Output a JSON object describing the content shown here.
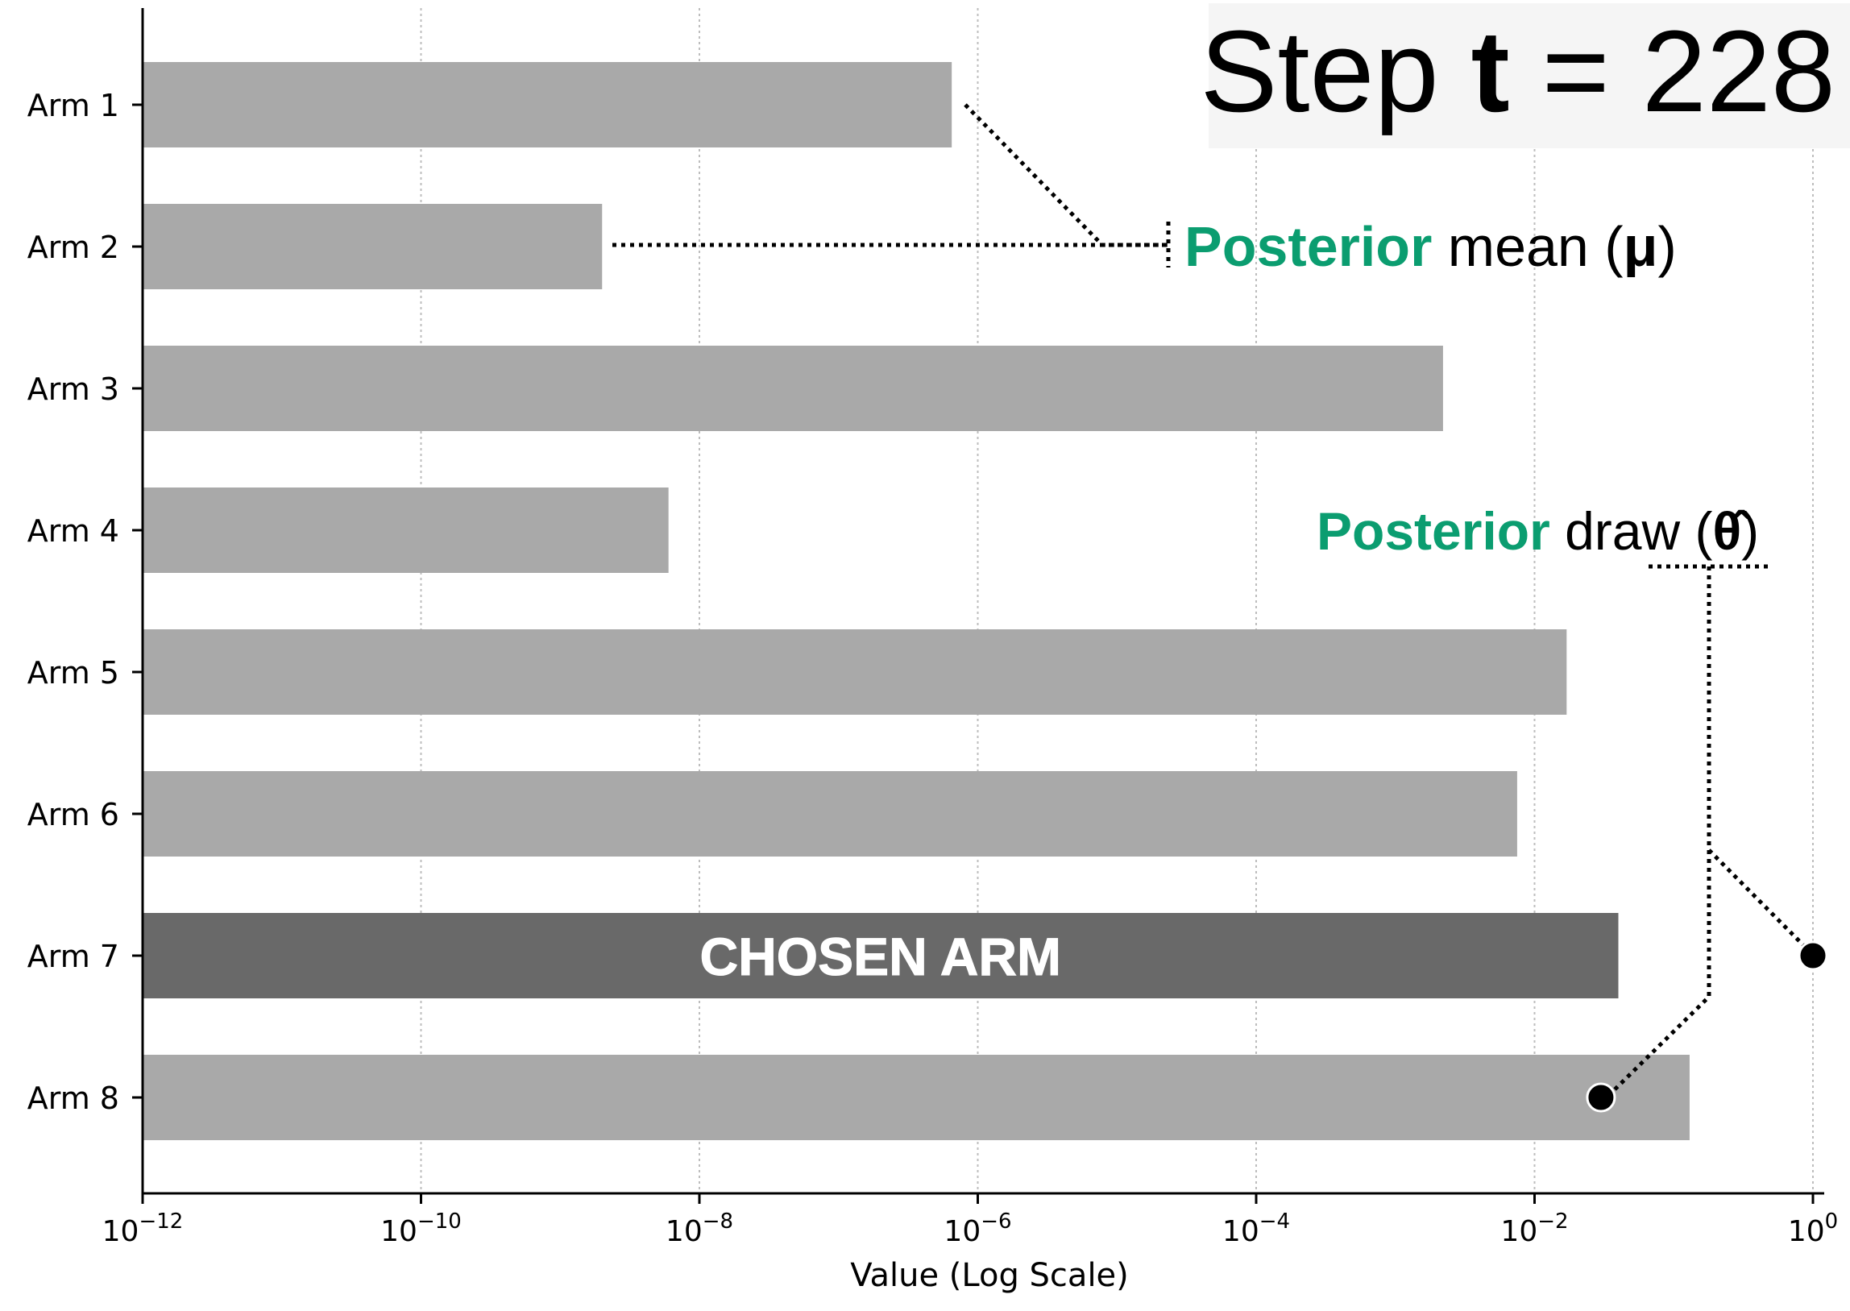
{
  "chart_data": {
    "type": "bar",
    "orientation": "horizontal",
    "xscale": "log",
    "xlim": [
      1e-12,
      1
    ],
    "xlabel": "Value (Log Scale)",
    "ylabel": "",
    "xticks": [
      {
        "value": 1e-12,
        "base": "10",
        "exp": "−12"
      },
      {
        "value": 1e-10,
        "base": "10",
        "exp": "−10"
      },
      {
        "value": 1e-08,
        "base": "10",
        "exp": "−8"
      },
      {
        "value": 1e-06,
        "base": "10",
        "exp": "−6"
      },
      {
        "value": 0.0001,
        "base": "10",
        "exp": "−4"
      },
      {
        "value": 0.01,
        "base": "10",
        "exp": "−2"
      },
      {
        "value": 1,
        "base": "10",
        "exp": "0"
      }
    ],
    "grid": "vertical dotted",
    "categories": [
      "Arm 1",
      "Arm 2",
      "Arm 3",
      "Arm 4",
      "Arm 5",
      "Arm 6",
      "Arm 7",
      "Arm 8"
    ],
    "values": [
      6.5e-07,
      2e-09,
      0.0022,
      6e-09,
      0.017,
      0.0075,
      0.04,
      0.13
    ],
    "chosen_index": 6,
    "chosen_label": "CHOSEN ARM",
    "colors": {
      "bar": "#a9a9a9",
      "chosen_bar": "#696969",
      "accent": "#0b9d70",
      "text": "#000000"
    },
    "draw_points": [
      {
        "arm": "Arm 7",
        "value": 1.0
      },
      {
        "arm": "Arm 8",
        "value": 0.03
      }
    ]
  },
  "step_box": {
    "prefix": "Step ",
    "var": "t",
    "suffix": " = 228"
  },
  "mean_label": {
    "accent": "Posterior",
    "rest": " mean (",
    "symbol": "μ",
    "close": ")"
  },
  "draw_label": {
    "accent": "Posterior",
    "rest": " draw (",
    "symbol": "θ̂",
    "close": ")"
  }
}
